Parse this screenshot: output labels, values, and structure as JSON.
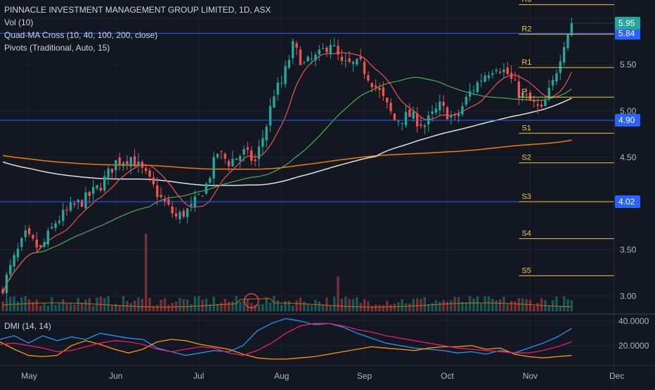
{
  "legend": {
    "title": "PINNACLE INVESTMENT MANAGEMENT GROUP LIMITED, 1D, ASX",
    "volume": "Vol (10)",
    "ma_cross": "Quad-MA Cross (10, 40, 100, 200, close)",
    "pivots": "Pivots (Traditional, Auto, 15)",
    "dmi": "DMI (14, 14)"
  },
  "colors": {
    "background": "#131722",
    "up": "#26a69a",
    "down": "#ef5350",
    "pivot": "#f5c542",
    "hline": "#2962ff",
    "price_badge": "#26a69a",
    "ma10": "#ef5350",
    "ma40": "#4caf50",
    "ma100": "#e0e0e0",
    "ma200": "#f57c00",
    "dmi_plus": "#2196f3",
    "dmi_minus": "#ff9800",
    "adx": "#e91e63"
  },
  "chart_data": [
    {
      "type": "candlestick",
      "name": "price",
      "ylim": [
        2.82,
        6.2
      ],
      "y_ticks": [
        "3.00",
        "3.50",
        "4.00",
        "4.50",
        "5.00",
        "5.50",
        "6.00"
      ],
      "x_ticks": [
        "May",
        "Jun",
        "Jul",
        "Aug",
        "Sep",
        "Oct",
        "Nov",
        "Dec"
      ],
      "x_tick_index": [
        7,
        30,
        52,
        74,
        96,
        118,
        140,
        163
      ],
      "n_bars": 152,
      "key_points": [
        [
          0,
          3.1
        ],
        [
          3,
          3.4
        ],
        [
          6,
          3.65
        ],
        [
          10,
          3.5
        ],
        [
          14,
          3.8
        ],
        [
          18,
          3.95
        ],
        [
          22,
          4.05
        ],
        [
          26,
          4.2
        ],
        [
          30,
          4.45
        ],
        [
          34,
          4.5
        ],
        [
          38,
          4.3
        ],
        [
          42,
          4.05
        ],
        [
          46,
          3.85
        ],
        [
          50,
          3.95
        ],
        [
          54,
          4.2
        ],
        [
          57,
          4.55
        ],
        [
          60,
          4.45
        ],
        [
          64,
          4.55
        ],
        [
          67,
          4.45
        ],
        [
          70,
          4.85
        ],
        [
          72,
          5.2
        ],
        [
          74,
          5.3
        ],
        [
          77,
          5.7
        ],
        [
          80,
          5.5
        ],
        [
          84,
          5.6
        ],
        [
          87,
          5.75
        ],
        [
          90,
          5.5
        ],
        [
          95,
          5.5
        ],
        [
          100,
          5.2
        ],
        [
          104,
          4.9
        ],
        [
          108,
          4.95
        ],
        [
          112,
          4.85
        ],
        [
          116,
          5.05
        ],
        [
          120,
          4.9
        ],
        [
          124,
          5.2
        ],
        [
          128,
          5.4
        ],
        [
          131,
          5.5
        ],
        [
          134,
          5.4
        ],
        [
          137,
          5.2
        ],
        [
          140,
          5.1
        ],
        [
          143,
          5.0
        ],
        [
          146,
          5.3
        ],
        [
          149,
          5.75
        ],
        [
          151,
          5.95
        ]
      ],
      "last_price": "5.95",
      "horizontal_levels": [
        {
          "label": "5.84",
          "value": 5.84
        },
        {
          "label": "4.90",
          "value": 4.9
        },
        {
          "label": "4.02",
          "value": 4.02
        }
      ],
      "pivot_levels": [
        {
          "label": "R3",
          "value": 6.15
        },
        {
          "label": "R2",
          "value": 5.83
        },
        {
          "label": "R1",
          "value": 5.47
        },
        {
          "label": "P",
          "value": 5.15
        },
        {
          "label": "S1",
          "value": 4.76
        },
        {
          "label": "S2",
          "value": 4.44
        },
        {
          "label": "S3",
          "value": 4.02
        },
        {
          "label": "S4",
          "value": 3.62
        },
        {
          "label": "S5",
          "value": 3.22
        }
      ],
      "pivot_start_index": 137,
      "moving_averages": [
        "10",
        "40",
        "100",
        "200"
      ]
    },
    {
      "type": "bar",
      "name": "volume",
      "spikes": [
        [
          38,
          8.5
        ],
        [
          89,
          3.8
        ],
        [
          66,
          0.9
        ]
      ],
      "circle_index": 66
    },
    {
      "type": "line",
      "name": "DMI",
      "ylim": [
        5,
        45
      ],
      "y_ticks": [
        "20.0000",
        "40.0000"
      ],
      "series": [
        {
          "key": "plus",
          "values": [
            25,
            28,
            22,
            28,
            24,
            27,
            25,
            30,
            28,
            26,
            25,
            18,
            15,
            12,
            14,
            16,
            15,
            20,
            32,
            38,
            42,
            40,
            37,
            38,
            35,
            30,
            26,
            22,
            20,
            18,
            17,
            16,
            14,
            15,
            13,
            16,
            14,
            18,
            22,
            27,
            34
          ]
        },
        {
          "key": "minus",
          "values": [
            23,
            17,
            12,
            11,
            12,
            20,
            24,
            21,
            17,
            14,
            17,
            23,
            25,
            24,
            21,
            19,
            17,
            13,
            10,
            9,
            9,
            10,
            11,
            13,
            15,
            17,
            19,
            18,
            17,
            16,
            18,
            19,
            19,
            20,
            17,
            18,
            13,
            11,
            10,
            11,
            12
          ]
        },
        {
          "key": "adx",
          "values": [
            21,
            22,
            20,
            18,
            15,
            16,
            19,
            22,
            24,
            23,
            21,
            17,
            15,
            17,
            19,
            18,
            14,
            12,
            16,
            22,
            30,
            36,
            38,
            38,
            36,
            33,
            31,
            28,
            26,
            24,
            22,
            20,
            18,
            17,
            16,
            15,
            14,
            14,
            16,
            19,
            23
          ]
        }
      ]
    }
  ]
}
